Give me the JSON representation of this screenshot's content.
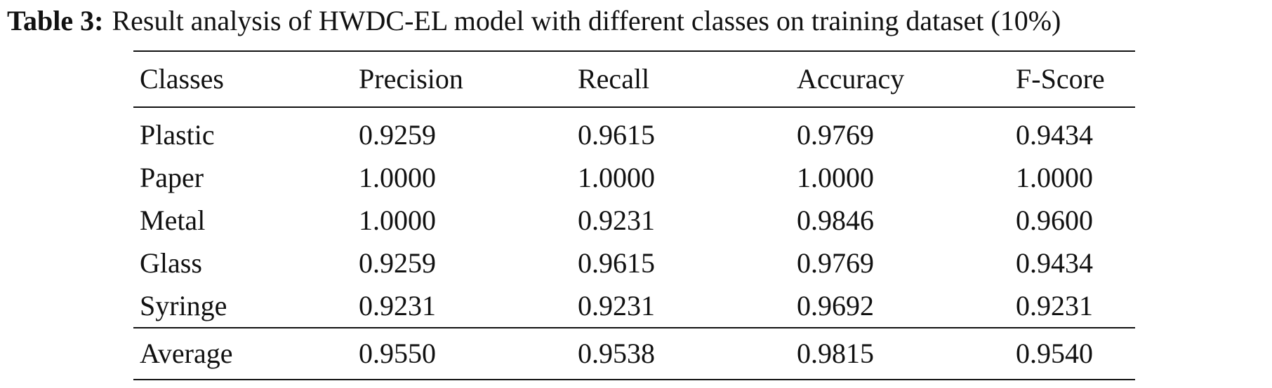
{
  "caption": {
    "label": "Table 3:",
    "text": "Result analysis of HWDC-EL model with different classes on training dataset (10%)"
  },
  "table": {
    "headers": [
      "Classes",
      "Precision",
      "Recall",
      "Accuracy",
      "F-Score"
    ],
    "rows": [
      [
        "Plastic",
        "0.9259",
        "0.9615",
        "0.9769",
        "0.9434"
      ],
      [
        "Paper",
        "1.0000",
        "1.0000",
        "1.0000",
        "1.0000"
      ],
      [
        "Metal",
        "1.0000",
        "0.9231",
        "0.9846",
        "0.9600"
      ],
      [
        "Glass",
        "0.9259",
        "0.9615",
        "0.9769",
        "0.9434"
      ],
      [
        "Syringe",
        "0.9231",
        "0.9231",
        "0.9692",
        "0.9231"
      ]
    ],
    "footer": [
      "Average",
      "0.9550",
      "0.9538",
      "0.9815",
      "0.9540"
    ]
  }
}
